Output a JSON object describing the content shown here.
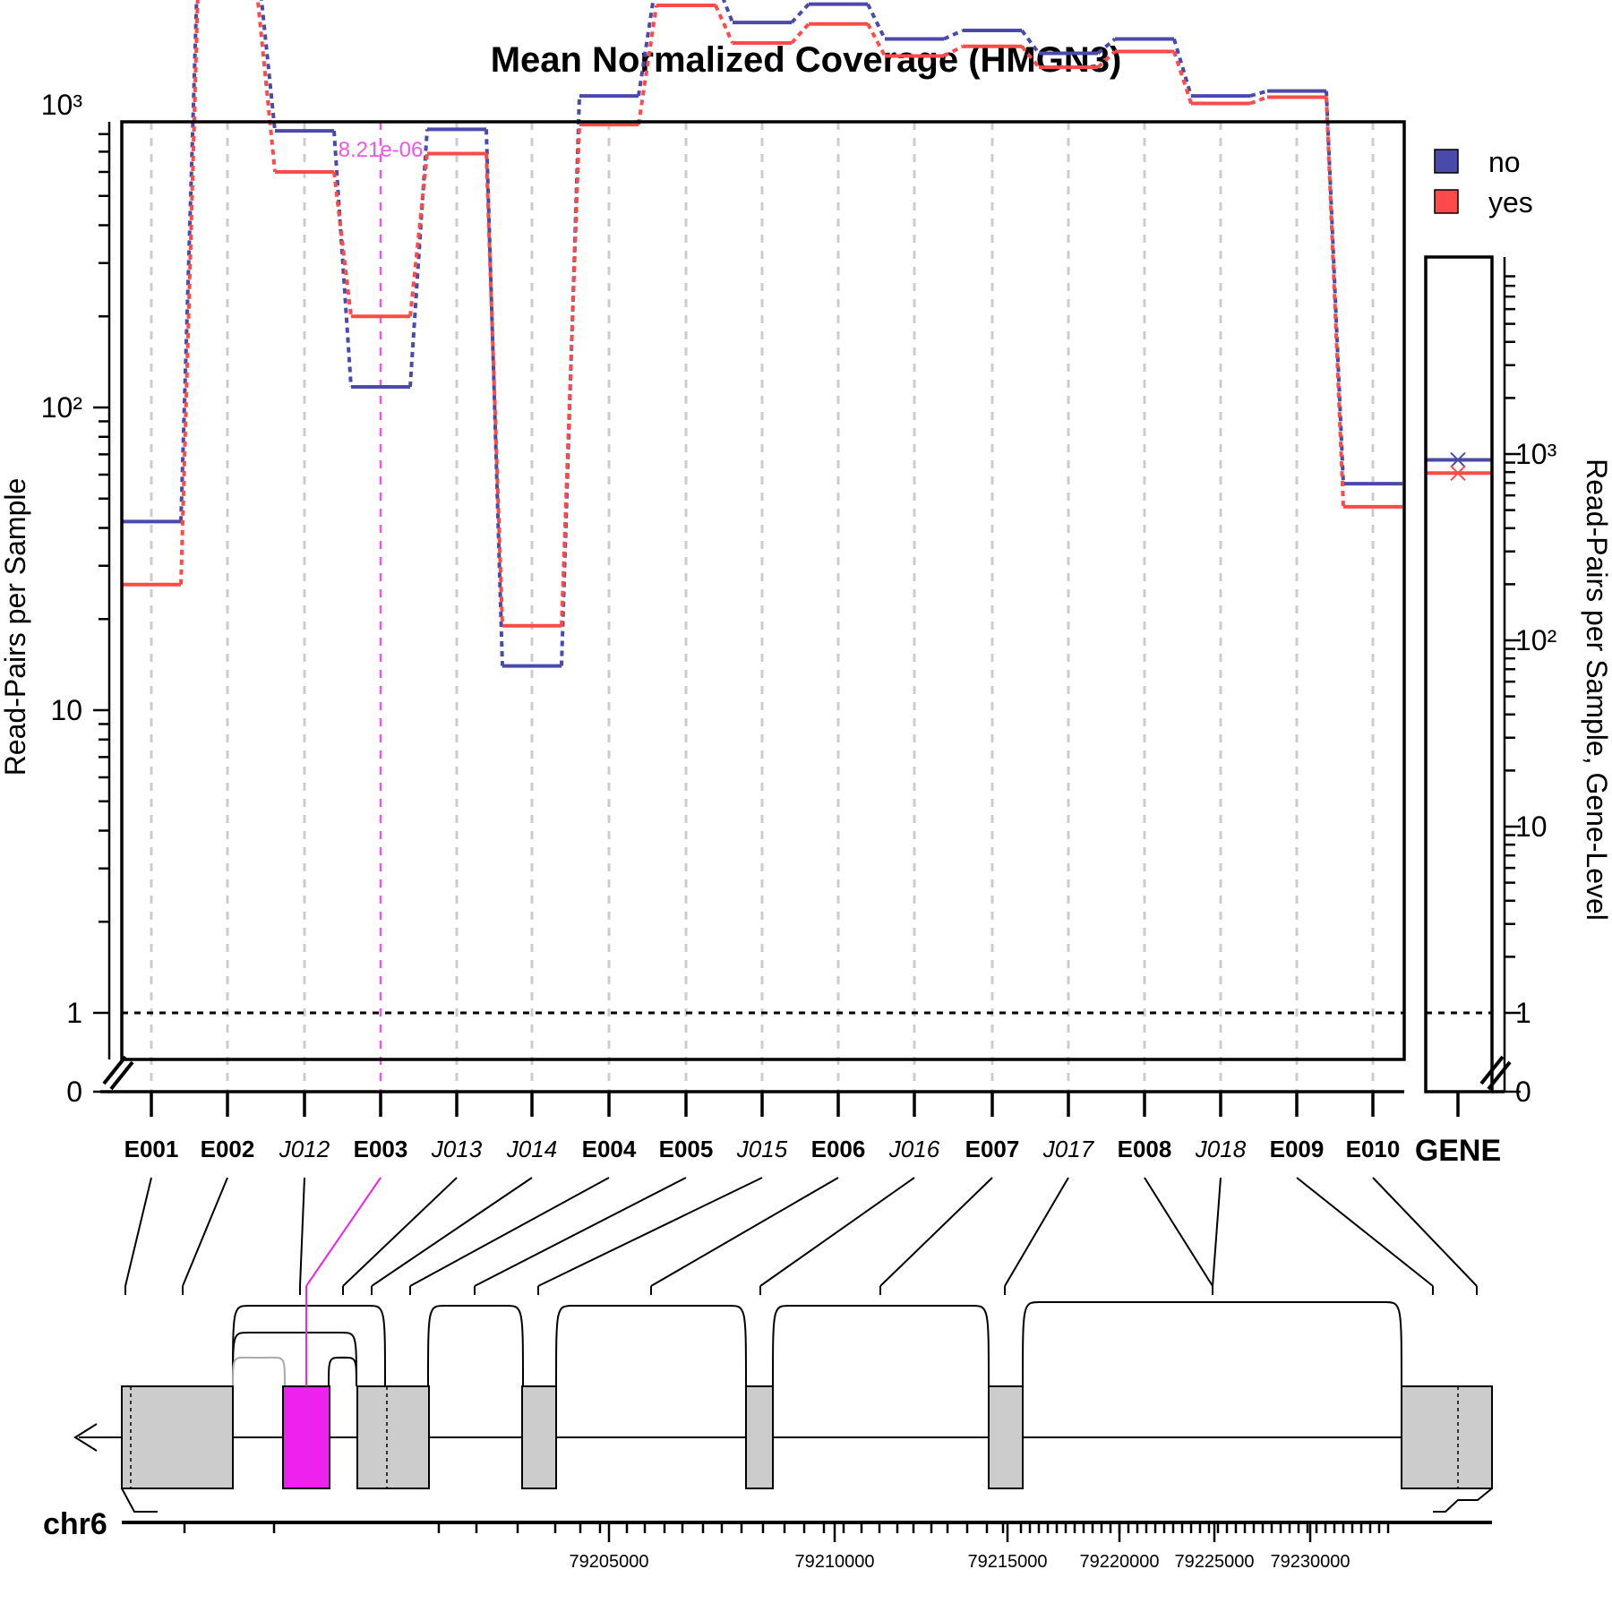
{
  "chart_data": {
    "type": "line",
    "title": "Mean Normalized Coverage (HMGN3)",
    "ylabel": "Read-Pairs per Sample",
    "ylabel_right": "Read-Pairs per Sample, Gene-Level",
    "yscale": "log",
    "y_ticks": [
      "0",
      "1",
      "10",
      "10²",
      "10³"
    ],
    "y_ticks_right": [
      "0",
      "1",
      "10",
      "10²",
      "10³"
    ],
    "legend": {
      "position": "top-right",
      "entries": [
        "no",
        "yes"
      ]
    },
    "colors": {
      "no": "#4a4aaa",
      "yes": "#ff4a4a",
      "highlight": "#ee55ee",
      "feature_fill": "#cccccc"
    },
    "features": [
      {
        "id": "E001",
        "type": "exon"
      },
      {
        "id": "E002",
        "type": "exon"
      },
      {
        "id": "J012",
        "type": "junction"
      },
      {
        "id": "E003",
        "type": "exon"
      },
      {
        "id": "J013",
        "type": "junction"
      },
      {
        "id": "J014",
        "type": "junction"
      },
      {
        "id": "E004",
        "type": "exon"
      },
      {
        "id": "E005",
        "type": "exon"
      },
      {
        "id": "J015",
        "type": "junction"
      },
      {
        "id": "E006",
        "type": "exon"
      },
      {
        "id": "J016",
        "type": "junction"
      },
      {
        "id": "E007",
        "type": "exon"
      },
      {
        "id": "J017",
        "type": "junction"
      },
      {
        "id": "E008",
        "type": "exon"
      },
      {
        "id": "J018",
        "type": "junction"
      },
      {
        "id": "E009",
        "type": "exon"
      },
      {
        "id": "E010",
        "type": "exon"
      }
    ],
    "series": [
      {
        "name": "no",
        "values": [
          42,
          3100,
          820,
          117,
          830,
          14,
          1070,
          2600,
          1870,
          2150,
          1650,
          1760,
          1480,
          1650,
          1070,
          1110,
          56
        ]
      },
      {
        "name": "yes",
        "values": [
          26,
          2350,
          600,
          200,
          690,
          19,
          860,
          2130,
          1600,
          1850,
          1450,
          1560,
          1330,
          1500,
          1010,
          1060,
          47
        ]
      }
    ],
    "gene_label": "GENE",
    "gene_level": {
      "no": 930,
      "yes": 790
    },
    "significance": {
      "feature": "E003",
      "pvalue": "8.21e-06"
    },
    "chromosome": "chr6",
    "genome_ticks": [
      "79205000",
      "79210000",
      "79215000",
      "79220000",
      "79225000",
      "79230000"
    ]
  }
}
